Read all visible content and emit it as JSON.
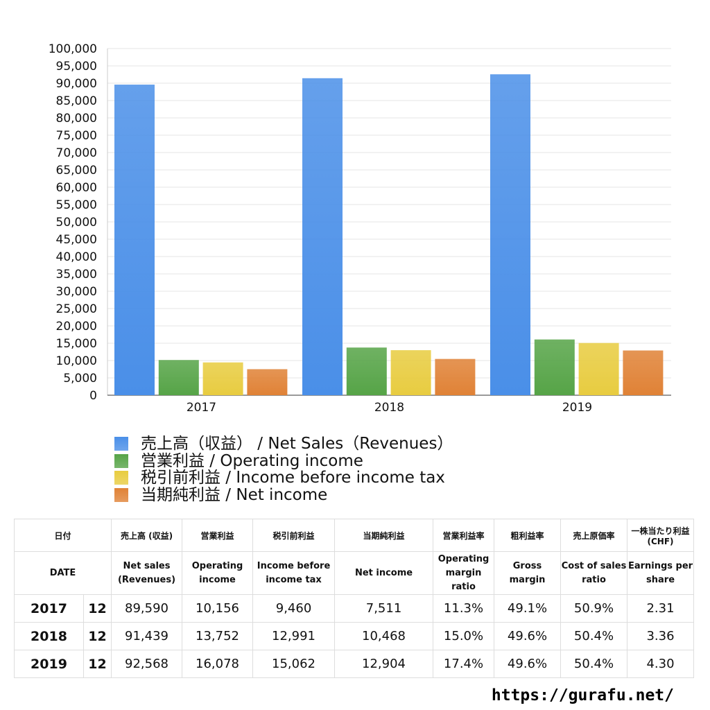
{
  "chart_data": {
    "type": "bar",
    "categories": [
      "2017",
      "2018",
      "2019"
    ],
    "ylim": [
      0,
      100000
    ],
    "yticks": [
      0,
      5000,
      10000,
      15000,
      20000,
      25000,
      30000,
      35000,
      40000,
      45000,
      50000,
      55000,
      60000,
      65000,
      70000,
      75000,
      80000,
      85000,
      90000,
      95000,
      100000
    ],
    "grid": true,
    "legend_placement": "bottom",
    "series": [
      {
        "name": "売上高（収益） / Net Sales（Revenues）",
        "values": [
          89590,
          91439,
          92568
        ],
        "color": "#4a8fe8"
      },
      {
        "name": "営業利益 / Operating income",
        "values": [
          10156,
          13752,
          16078
        ],
        "color": "#56a447"
      },
      {
        "name": "税引前利益 / Income before income tax",
        "values": [
          9460,
          12991,
          15062
        ],
        "color": "#e8cc40"
      },
      {
        "name": "当期純利益 / Net income",
        "values": [
          7511,
          10468,
          12904
        ],
        "color": "#e08236"
      }
    ]
  },
  "table": {
    "header_jp": [
      "日付",
      "売上高 (収益)",
      "営業利益",
      "税引前利益",
      "当期純利益",
      "営業利益率",
      "粗利益率",
      "売上原価率",
      "一株当たり利益 (CHF)"
    ],
    "header_en": [
      "DATE",
      "Net sales (Revenues)",
      "Operating income",
      "Income before income tax",
      "Net income",
      "Operating margin ratio",
      "Gross margin",
      "Cost of sales ratio",
      "Earnings per share"
    ],
    "rows": [
      [
        "2017",
        "12",
        "89,590",
        "10,156",
        "9,460",
        "7,511",
        "11.3%",
        "49.1%",
        "50.9%",
        "2.31"
      ],
      [
        "2018",
        "12",
        "91,439",
        "13,752",
        "12,991",
        "10,468",
        "15.0%",
        "49.6%",
        "50.4%",
        "3.36"
      ],
      [
        "2019",
        "12",
        "92,568",
        "16,078",
        "15,062",
        "12,904",
        "17.4%",
        "49.6%",
        "50.4%",
        "4.30"
      ]
    ]
  },
  "footer": {
    "url": "https://gurafu.net/"
  }
}
